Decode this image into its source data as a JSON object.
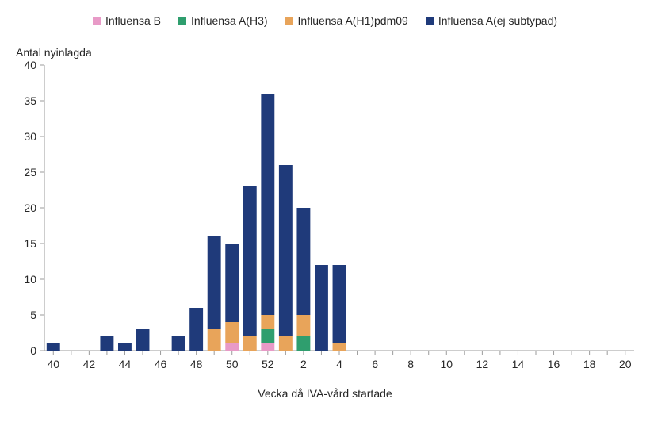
{
  "chart": {
    "type": "stacked-bar",
    "y_axis_title": "Antal nyinlagda",
    "x_axis_title": "Vecka då IVA-vård startade",
    "background_color": "#ffffff",
    "axis_color": "#9b9b9b",
    "tick_color": "#9b9b9b",
    "text_color": "#262626",
    "title_fontsize": 14,
    "tick_fontsize": 14,
    "ylim": [
      0,
      40
    ],
    "ytick_step": 5,
    "yticks": [
      0,
      5,
      10,
      15,
      20,
      25,
      30,
      35,
      40
    ],
    "xticks_labels": [
      "40",
      "42",
      "44",
      "46",
      "48",
      "50",
      "52",
      "2",
      "4",
      "6",
      "8",
      "10",
      "12",
      "14",
      "16",
      "18",
      "20"
    ],
    "xticks_every": 2,
    "bar_width": 0.75,
    "categories": [
      "40",
      "41",
      "42",
      "43",
      "44",
      "45",
      "46",
      "47",
      "48",
      "49",
      "50",
      "51",
      "52",
      "1",
      "2",
      "3",
      "4",
      "5",
      "6",
      "7",
      "8",
      "9",
      "10",
      "11",
      "12",
      "13",
      "14",
      "15",
      "16",
      "17",
      "18",
      "19",
      "20"
    ],
    "series": [
      {
        "key": "influensa_b",
        "label": "Influensa B",
        "color": "#e89ac7"
      },
      {
        "key": "influensa_a_h3",
        "label": "Influensa A(H3)",
        "color": "#2f9e6e"
      },
      {
        "key": "influensa_a_h1",
        "label": "Influensa A(H1)pdm09",
        "color": "#e8a45a"
      },
      {
        "key": "influensa_a_ej",
        "label": "Influensa A(ej subtypad)",
        "color": "#1f3a7a"
      }
    ],
    "data": {
      "influensa_b": [
        0,
        0,
        0,
        0,
        0,
        0,
        0,
        0,
        0,
        0,
        1,
        0,
        1,
        0,
        0,
        0,
        0,
        0,
        0,
        0,
        0,
        0,
        0,
        0,
        0,
        0,
        0,
        0,
        0,
        0,
        0,
        0,
        0
      ],
      "influensa_a_h3": [
        0,
        0,
        0,
        0,
        0,
        0,
        0,
        0,
        0,
        0,
        0,
        0,
        2,
        0,
        2,
        0,
        0,
        0,
        0,
        0,
        0,
        0,
        0,
        0,
        0,
        0,
        0,
        0,
        0,
        0,
        0,
        0,
        0
      ],
      "influensa_a_h1": [
        0,
        0,
        0,
        0,
        0,
        0,
        0,
        0,
        0,
        3,
        3,
        2,
        2,
        2,
        3,
        0,
        1,
        0,
        0,
        0,
        0,
        0,
        0,
        0,
        0,
        0,
        0,
        0,
        0,
        0,
        0,
        0,
        0
      ],
      "influensa_a_ej": [
        1,
        0,
        0,
        2,
        1,
        3,
        0,
        2,
        6,
        13,
        11,
        21,
        31,
        24,
        15,
        12,
        11,
        0,
        0,
        0,
        0,
        0,
        0,
        0,
        0,
        0,
        0,
        0,
        0,
        0,
        0,
        0,
        0
      ]
    }
  }
}
